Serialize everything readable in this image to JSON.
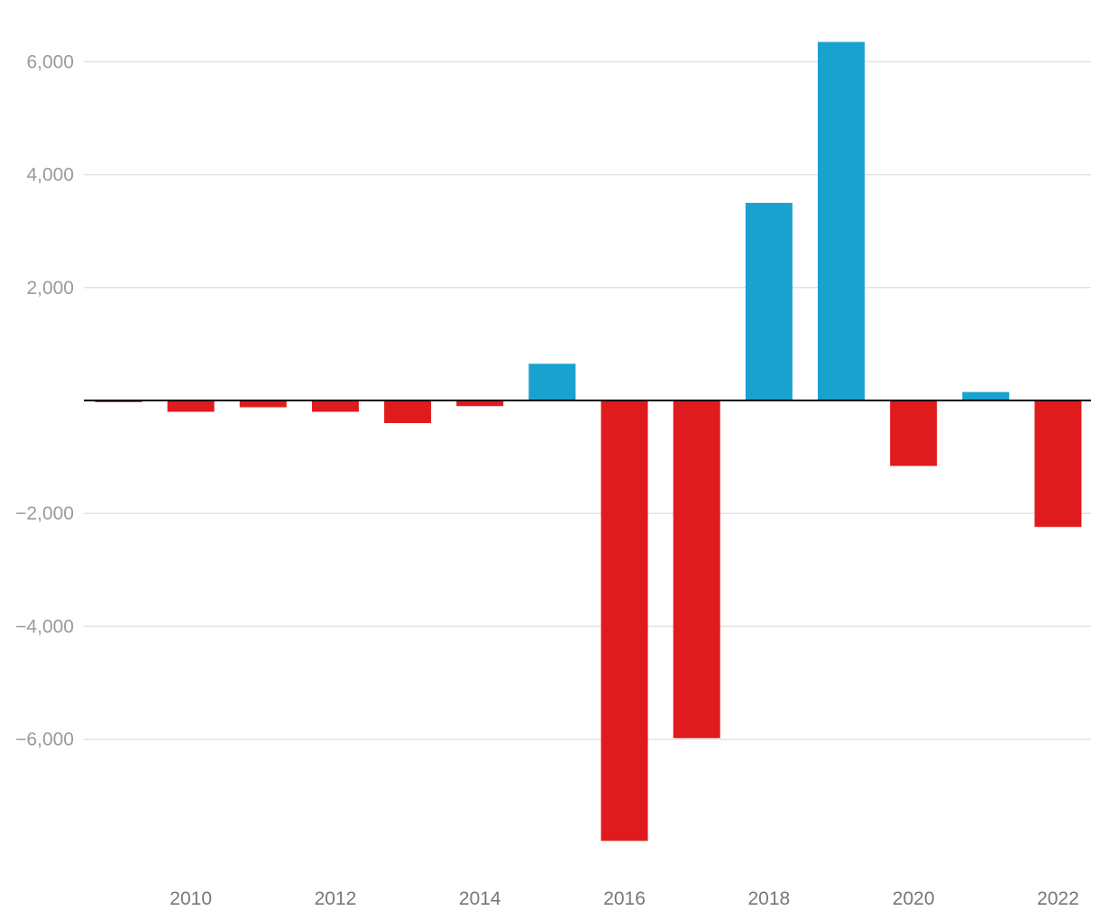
{
  "chart_data": {
    "type": "bar",
    "title": "",
    "xlabel": "",
    "ylabel": "",
    "categories": [
      "2009",
      "2010",
      "2011",
      "2012",
      "2013",
      "2014",
      "2015",
      "2016",
      "2017",
      "2018",
      "2019",
      "2020",
      "2021",
      "2022"
    ],
    "values": [
      -30,
      -200,
      -120,
      -200,
      -400,
      -100,
      650,
      -7800,
      -5980,
      3500,
      6350,
      -1160,
      150,
      -2240
    ],
    "x_tick_labels": [
      "2010",
      "2012",
      "2014",
      "2016",
      "2018",
      "2020",
      "2022"
    ],
    "y_ticks": [
      6000,
      4000,
      2000,
      -2000,
      -4000,
      -6000
    ],
    "y_tick_labels": [
      "6,000",
      "4,000",
      "2,000",
      "−2,000",
      "−4,000",
      "−6,000"
    ],
    "ylim": [
      -8350,
      6950
    ],
    "grid": true,
    "legend": "none",
    "colors": {
      "positive": "#1aa2cf",
      "negative": "#e01b1e",
      "grid": "#e2e2e2",
      "zero_line": "#000000"
    }
  }
}
